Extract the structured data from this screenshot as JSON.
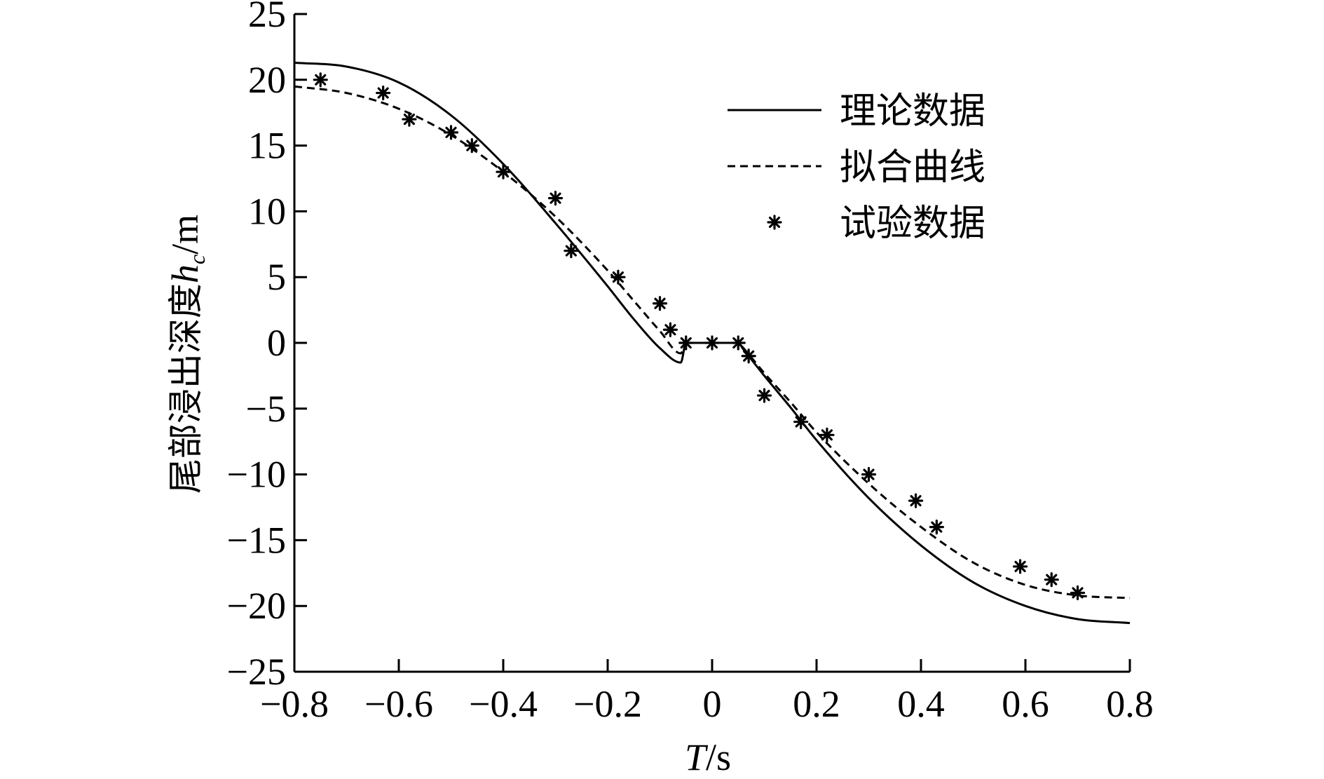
{
  "chart_data": {
    "type": "line",
    "xlabel": {
      "italic": "T",
      "unit": "/s"
    },
    "ylabel": {
      "prefix": "尾部浸出深度",
      "italic": "h",
      "sub": "c",
      "unit": "/m"
    },
    "xlim": [
      -0.8,
      0.8
    ],
    "ylim": [
      -25,
      25
    ],
    "x_ticks": [
      {
        "value": -0.8,
        "label": "−0.8"
      },
      {
        "value": -0.6,
        "label": "−0.6"
      },
      {
        "value": -0.4,
        "label": "−0.4"
      },
      {
        "value": -0.2,
        "label": "−0.2"
      },
      {
        "value": 0,
        "label": "0"
      },
      {
        "value": 0.2,
        "label": "0.2"
      },
      {
        "value": 0.4,
        "label": "0.4"
      },
      {
        "value": 0.6,
        "label": "0.6"
      },
      {
        "value": 0.8,
        "label": "0.8"
      }
    ],
    "y_ticks": [
      {
        "value": 25,
        "label": "25"
      },
      {
        "value": 20,
        "label": "20"
      },
      {
        "value": 15,
        "label": "15"
      },
      {
        "value": 10,
        "label": "10"
      },
      {
        "value": 5,
        "label": "5"
      },
      {
        "value": 0,
        "label": "0"
      },
      {
        "value": -5,
        "label": "−5"
      },
      {
        "value": -10,
        "label": "−10"
      },
      {
        "value": -15,
        "label": "−15"
      },
      {
        "value": -20,
        "label": "−20"
      },
      {
        "value": -25,
        "label": "−25"
      }
    ],
    "legend_position": "top-right",
    "grid": false,
    "series": [
      {
        "name": "理论数据",
        "style": "solid",
        "x": [
          -0.8,
          -0.7,
          -0.6,
          -0.5,
          -0.4,
          -0.3,
          -0.2,
          -0.15,
          -0.1,
          -0.06,
          -0.05,
          0,
          0.05,
          0.06,
          0.1,
          0.15,
          0.2,
          0.3,
          0.4,
          0.5,
          0.6,
          0.7,
          0.8
        ],
        "y": [
          21.3,
          21.0,
          19.8,
          17.3,
          13.6,
          9.1,
          4.3,
          1.8,
          -0.4,
          -1.5,
          0,
          0,
          0,
          -0.5,
          -2.5,
          -4.9,
          -7.4,
          -11.8,
          -15.4,
          -18.2,
          -20.0,
          -21.0,
          -21.3
        ]
      },
      {
        "name": "拟合曲线",
        "style": "dashed",
        "x": [
          -0.8,
          -0.7,
          -0.6,
          -0.5,
          -0.4,
          -0.3,
          -0.2,
          -0.15,
          -0.1,
          -0.06,
          -0.05,
          0,
          0.05,
          0.06,
          0.1,
          0.15,
          0.2,
          0.3,
          0.4,
          0.5,
          0.6,
          0.7,
          0.8
        ],
        "y": [
          19.5,
          19.0,
          17.8,
          15.8,
          13.0,
          9.6,
          5.5,
          3.2,
          0.9,
          -0.8,
          0,
          0,
          0,
          -0.4,
          -2.3,
          -4.5,
          -6.8,
          -10.7,
          -14.0,
          -16.7,
          -18.4,
          -19.2,
          -19.4
        ]
      },
      {
        "name": "试验数据",
        "style": "marker",
        "x": [
          -0.75,
          -0.63,
          -0.58,
          -0.5,
          -0.46,
          -0.4,
          -0.3,
          -0.27,
          -0.18,
          -0.1,
          -0.08,
          -0.05,
          0,
          0.05,
          0.07,
          0.1,
          0.17,
          0.22,
          0.3,
          0.39,
          0.43,
          0.59,
          0.65,
          0.7
        ],
        "y": [
          20,
          19,
          17,
          16,
          15,
          13,
          11,
          7,
          5,
          3,
          1,
          0,
          0,
          0,
          -1,
          -4,
          -6,
          -7,
          -10,
          -12,
          -14,
          -17,
          -18,
          -19
        ]
      }
    ]
  }
}
